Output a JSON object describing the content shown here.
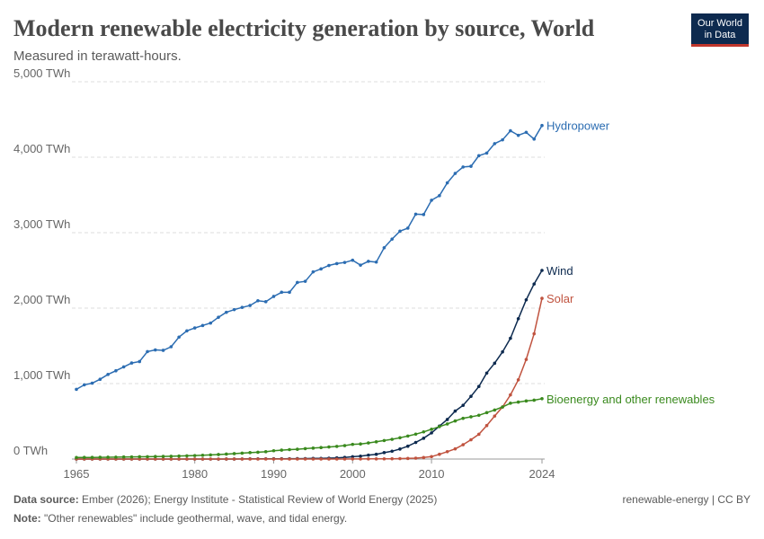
{
  "chart_data": {
    "type": "line",
    "title": "Modern renewable electricity generation by source, World",
    "subtitle": "Measured in terawatt-hours.",
    "logo": [
      "Our World",
      "in Data"
    ],
    "source_label": "Data source:",
    "source": "Ember (2026); Energy Institute - Statistical Review of World Energy (2025)",
    "note_label": "Note:",
    "note": "\"Other renewables\" include geothermal, wave, and tidal energy.",
    "license": "renewable-energy | CC BY",
    "x": [
      1965,
      1966,
      1967,
      1968,
      1969,
      1970,
      1971,
      1972,
      1973,
      1974,
      1975,
      1976,
      1977,
      1978,
      1979,
      1980,
      1981,
      1982,
      1983,
      1984,
      1985,
      1986,
      1987,
      1988,
      1989,
      1990,
      1991,
      1992,
      1993,
      1994,
      1995,
      1996,
      1997,
      1998,
      1999,
      2000,
      2001,
      2002,
      2003,
      2004,
      2005,
      2006,
      2007,
      2008,
      2009,
      2010,
      2011,
      2012,
      2013,
      2014,
      2015,
      2016,
      2017,
      2018,
      2019,
      2020,
      2021,
      2022,
      2023,
      2024
    ],
    "xlim": [
      1965,
      2024
    ],
    "xticks": [
      1965,
      1980,
      1990,
      2000,
      2010,
      2024
    ],
    "ylim": [
      0,
      5000
    ],
    "yticks": [
      {
        "value": 0,
        "label": "0 TWh"
      },
      {
        "value": 1000,
        "label": "1,000 TWh"
      },
      {
        "value": 2000,
        "label": "2,000 TWh"
      },
      {
        "value": 3000,
        "label": "3,000 TWh"
      },
      {
        "value": 4000,
        "label": "4,000 TWh"
      },
      {
        "value": 5000,
        "label": "5,000 TWh"
      }
    ],
    "grid": true,
    "series": [
      {
        "name": "Hydropower",
        "color": "#2c6db2",
        "values": [
          924,
          983,
          1006,
          1057,
          1121,
          1170,
          1221,
          1273,
          1292,
          1424,
          1446,
          1441,
          1488,
          1616,
          1699,
          1737,
          1770,
          1802,
          1879,
          1945,
          1980,
          2010,
          2035,
          2098,
          2085,
          2155,
          2210,
          2210,
          2340,
          2355,
          2480,
          2520,
          2565,
          2590,
          2605,
          2635,
          2570,
          2620,
          2610,
          2800,
          2915,
          3020,
          3060,
          3245,
          3240,
          3430,
          3490,
          3660,
          3785,
          3870,
          3880,
          4020,
          4055,
          4180,
          4230,
          4350,
          4290,
          4330,
          4240,
          4420
        ]
      },
      {
        "name": "Wind",
        "color": "#0d2a4f",
        "values": [
          0,
          0,
          0,
          0,
          0,
          0,
          0,
          0,
          0,
          0,
          0,
          0,
          0,
          0,
          0,
          0,
          0,
          0,
          0.1,
          0.2,
          0.5,
          1,
          2,
          2.5,
          3,
          3.6,
          4,
          4.5,
          5,
          6,
          8,
          9,
          12,
          16,
          21,
          31,
          38,
          52,
          63,
          85,
          104,
          133,
          170,
          220,
          276,
          346,
          437,
          524,
          636,
          712,
          831,
          962,
          1140,
          1270,
          1420,
          1600,
          1860,
          2110,
          2320,
          2500
        ]
      },
      {
        "name": "Solar",
        "color": "#c0533f",
        "values": [
          0,
          0,
          0,
          0,
          0,
          0,
          0,
          0,
          0,
          0,
          0,
          0,
          0,
          0,
          0,
          0,
          0,
          0,
          0,
          0,
          0,
          0,
          0,
          0,
          0,
          0,
          0,
          0,
          0,
          0,
          0,
          0,
          0,
          0,
          0,
          1,
          1,
          2,
          2,
          3,
          4,
          6,
          8,
          12,
          20,
          32,
          63,
          98,
          135,
          190,
          256,
          328,
          444,
          570,
          690,
          850,
          1050,
          1320,
          1660,
          2130
        ]
      },
      {
        "name": "Bioenergy and other renewables",
        "color": "#3a8a1e",
        "values": [
          20,
          21,
          22,
          23,
          24,
          25,
          27,
          28,
          30,
          31,
          33,
          35,
          37,
          40,
          43,
          46,
          50,
          55,
          60,
          66,
          72,
          78,
          85,
          90,
          97,
          110,
          118,
          125,
          130,
          138,
          145,
          152,
          160,
          168,
          178,
          195,
          200,
          213,
          228,
          245,
          262,
          282,
          305,
          330,
          360,
          395,
          430,
          465,
          505,
          540,
          560,
          580,
          615,
          650,
          690,
          740,
          755,
          770,
          780,
          800
        ]
      }
    ]
  }
}
